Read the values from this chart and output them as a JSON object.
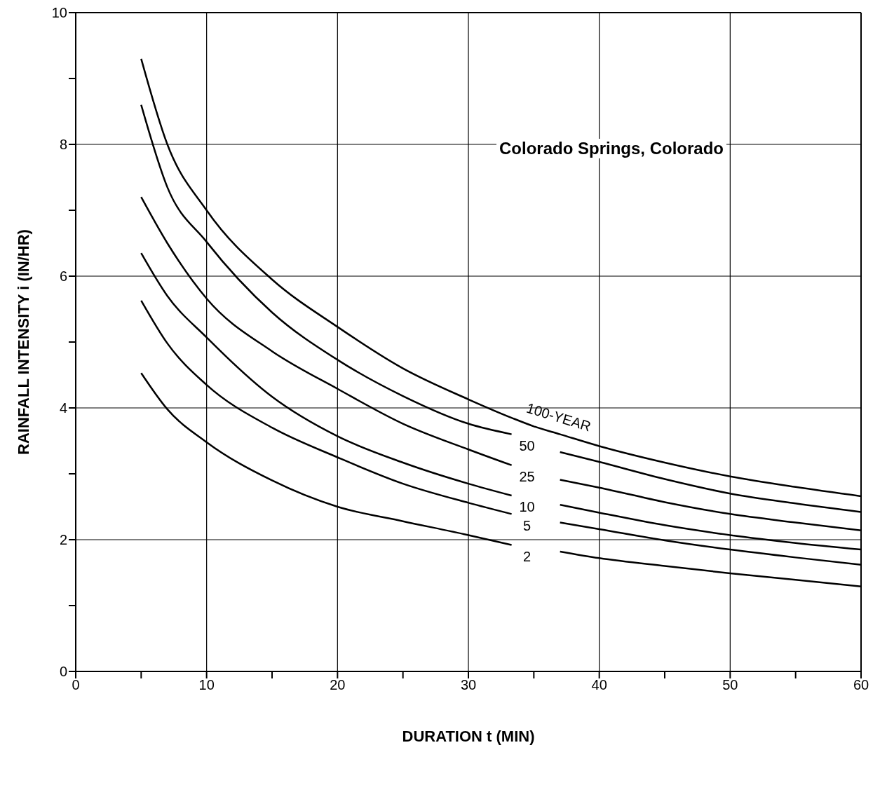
{
  "chart_data": {
    "type": "line",
    "title": "Colorado Springs, Colorado",
    "xlabel": "DURATION  t  (MIN)",
    "ylabel": "RAINFALL INTENSITY  i  (IN/HR)",
    "x": [
      5,
      7,
      10,
      15,
      20,
      25,
      30,
      33.3,
      35,
      37,
      40,
      45,
      50,
      55,
      60
    ],
    "series": [
      {
        "name": "100-YEAR",
        "color": "#000000",
        "values": [
          9.3,
          8.0,
          7.0,
          5.95,
          5.23,
          4.6,
          4.13,
          3.85,
          3.72,
          3.6,
          3.42,
          3.17,
          2.96,
          2.8,
          2.66
        ]
      },
      {
        "name": "50",
        "color": "#000000",
        "values": [
          8.6,
          7.35,
          6.52,
          5.45,
          4.73,
          4.18,
          3.76,
          3.6,
          null,
          3.33,
          3.18,
          2.92,
          2.7,
          2.55,
          2.42
        ]
      },
      {
        "name": "25",
        "color": "#000000",
        "values": [
          7.2,
          6.5,
          5.66,
          4.86,
          4.29,
          3.76,
          3.37,
          3.13,
          null,
          2.91,
          2.79,
          2.57,
          2.39,
          2.26,
          2.14
        ]
      },
      {
        "name": "10",
        "color": "#000000",
        "values": [
          6.35,
          5.7,
          5.07,
          4.17,
          3.57,
          3.17,
          2.85,
          2.67,
          null,
          2.53,
          2.41,
          2.22,
          2.07,
          1.95,
          1.85
        ]
      },
      {
        "name": "5",
        "color": "#000000",
        "values": [
          5.63,
          4.98,
          4.35,
          3.7,
          3.25,
          2.85,
          2.56,
          2.39,
          null,
          2.26,
          2.16,
          1.99,
          1.85,
          1.73,
          1.62
        ]
      },
      {
        "name": "2",
        "color": "#000000",
        "values": [
          4.53,
          3.98,
          3.48,
          2.9,
          2.5,
          2.28,
          2.07,
          1.92,
          null,
          1.82,
          1.72,
          1.6,
          1.49,
          1.39,
          1.29
        ]
      }
    ],
    "xlim": [
      0,
      60
    ],
    "xticks": [
      0,
      {
        "value": 5,
        "label": null
      },
      10,
      {
        "value": 15,
        "label": null
      },
      20,
      {
        "value": 25,
        "label": null
      },
      30,
      {
        "value": 35,
        "label": null
      },
      40,
      {
        "value": 45,
        "label": null
      },
      50,
      {
        "value": 55,
        "label": null
      },
      60
    ],
    "ylim": [
      0,
      10
    ],
    "yticks": [
      0,
      {
        "value": 1,
        "label": null
      },
      2,
      {
        "value": 3,
        "label": null
      },
      4,
      {
        "value": 5,
        "label": null
      },
      6,
      {
        "value": 7,
        "label": null
      },
      8,
      {
        "value": 9,
        "label": null
      },
      10
    ],
    "grid": true,
    "marker": "none",
    "line_style": "solid"
  }
}
